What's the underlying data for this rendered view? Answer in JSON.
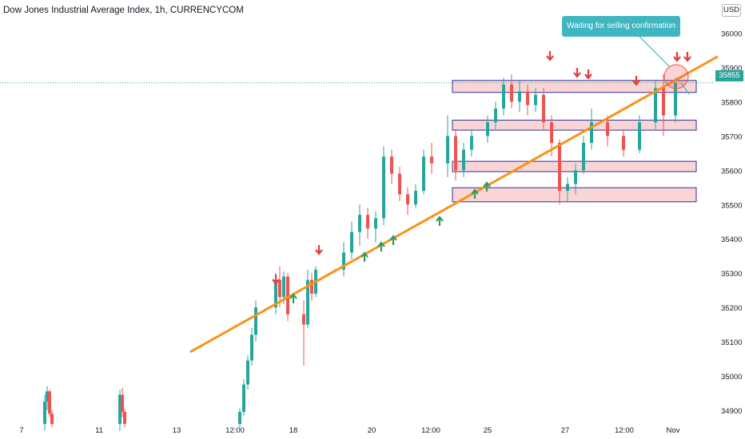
{
  "header": {
    "title": "Dow Jones Industrial Average Index, 1h, CURRENCYCOM",
    "currency": "USD"
  },
  "annotation": {
    "text": "Waiting for selling confirmation"
  },
  "last_price": "35855",
  "colors": {
    "up": "#26a69a",
    "down": "#ef5350",
    "trendline": "#f7931a",
    "zone_fill": "#f9d6d5",
    "zone_border": "#2a2e9e",
    "callout": "#3fb6c0",
    "sell_arrow": "#e53935",
    "buy_arrow": "#2e9b5c"
  },
  "chart_data": {
    "type": "candlestick",
    "title": "Dow Jones Industrial Average Index, 1h, CURRENCYCOM",
    "y_ticks": [
      34900,
      35000,
      35100,
      35200,
      35300,
      35400,
      35500,
      35600,
      35700,
      35800,
      35900,
      36000
    ],
    "x_ticks": [
      "7",
      "11",
      "13",
      "12:00",
      "18",
      "20",
      "12:00",
      "25",
      "27",
      "12:00",
      "Nov"
    ],
    "ylim": [
      34850,
      36030
    ],
    "grid": false,
    "last_price": 35855,
    "trendline": {
      "from": {
        "x": "15 Oct 12:00",
        "y": 35070
      },
      "to": {
        "x": "1 Nov",
        "y": 35932
      }
    },
    "resistance_zones": [
      {
        "low": 35827,
        "high": 35862
      },
      {
        "low": 35717,
        "high": 35746
      },
      {
        "low": 35596,
        "high": 35626
      },
      {
        "low": 35508,
        "high": 35549
      }
    ],
    "sell_signals": [
      "17 Oct",
      "19 Oct",
      "26 Oct a",
      "26 Oct b",
      "27 Oct a",
      "27 Oct b",
      "28 Oct",
      "1 Nov"
    ],
    "buy_signals": [
      "18 Oct",
      "20 Oct a",
      "20 Oct b",
      "20 Oct c",
      "22 Oct",
      "24 Oct a",
      "24 Oct b"
    ],
    "candles": [
      {
        "t": "Oct 7 a",
        "o": 34860,
        "h": 34945,
        "l": 34840,
        "c": 34925
      },
      {
        "t": "Oct 7 b",
        "o": 34925,
        "h": 34970,
        "l": 34900,
        "c": 34955
      },
      {
        "t": "Oct 7 c",
        "o": 34955,
        "h": 34960,
        "l": 34880,
        "c": 34890
      },
      {
        "t": "Oct 7 d",
        "o": 34890,
        "h": 34900,
        "l": 34850,
        "c": 34860
      },
      {
        "t": "Oct 11 a",
        "o": 34860,
        "h": 34960,
        "l": 34840,
        "c": 34945
      },
      {
        "t": "Oct 11 b",
        "o": 34945,
        "h": 34965,
        "l": 34880,
        "c": 34895
      },
      {
        "t": "Oct 11 c",
        "o": 34895,
        "h": 34905,
        "l": 34850,
        "c": 34860
      },
      {
        "t": "Oct 15 a",
        "o": 34860,
        "h": 34905,
        "l": 34850,
        "c": 34895
      },
      {
        "t": "Oct 15 b",
        "o": 34895,
        "h": 34990,
        "l": 34885,
        "c": 34975
      },
      {
        "t": "Oct 15 c",
        "o": 34975,
        "h": 35060,
        "l": 34960,
        "c": 35045
      },
      {
        "t": "Oct 15 d",
        "o": 35045,
        "h": 35140,
        "l": 35030,
        "c": 35120
      },
      {
        "t": "Oct 15 e",
        "o": 35120,
        "h": 35220,
        "l": 35100,
        "c": 35200
      },
      {
        "t": "Oct 18 a",
        "o": 35200,
        "h": 35300,
        "l": 35180,
        "c": 35280
      },
      {
        "t": "Oct 18 b",
        "o": 35280,
        "h": 35320,
        "l": 35200,
        "c": 35230
      },
      {
        "t": "Oct 18 c",
        "o": 35230,
        "h": 35305,
        "l": 35210,
        "c": 35290
      },
      {
        "t": "Oct 18 d",
        "o": 35290,
        "h": 35300,
        "l": 35160,
        "c": 35180
      },
      {
        "t": "Oct 19 a",
        "o": 35180,
        "h": 35220,
        "l": 35030,
        "c": 35150
      },
      {
        "t": "Oct 19 b",
        "o": 35150,
        "h": 35310,
        "l": 35140,
        "c": 35280
      },
      {
        "t": "Oct 19 c",
        "o": 35280,
        "h": 35300,
        "l": 35220,
        "c": 35240
      },
      {
        "t": "Oct 19 d",
        "o": 35240,
        "h": 35320,
        "l": 35230,
        "c": 35310
      },
      {
        "t": "Oct 20 a",
        "o": 35310,
        "h": 35390,
        "l": 35290,
        "c": 35360
      },
      {
        "t": "Oct 20 b",
        "o": 35360,
        "h": 35450,
        "l": 35340,
        "c": 35420
      },
      {
        "t": "Oct 20 c",
        "o": 35420,
        "h": 35500,
        "l": 35380,
        "c": 35470
      },
      {
        "t": "Oct 20 d",
        "o": 35470,
        "h": 35490,
        "l": 35400,
        "c": 35430
      },
      {
        "t": "Oct 21 a",
        "o": 35430,
        "h": 35480,
        "l": 35390,
        "c": 35460
      },
      {
        "t": "Oct 21 b",
        "o": 35460,
        "h": 35670,
        "l": 35440,
        "c": 35640
      },
      {
        "t": "Oct 21 c",
        "o": 35640,
        "h": 35660,
        "l": 35560,
        "c": 35590
      },
      {
        "t": "Oct 21 d",
        "o": 35590,
        "h": 35610,
        "l": 35510,
        "c": 35530
      },
      {
        "t": "Oct 22 a",
        "o": 35530,
        "h": 35550,
        "l": 35470,
        "c": 35500
      },
      {
        "t": "Oct 22 b",
        "o": 35500,
        "h": 35560,
        "l": 35490,
        "c": 35540
      },
      {
        "t": "Oct 22 c",
        "o": 35540,
        "h": 35660,
        "l": 35530,
        "c": 35640
      },
      {
        "t": "Oct 22 d",
        "o": 35640,
        "h": 35680,
        "l": 35590,
        "c": 35620
      },
      {
        "t": "Oct 24 a",
        "o": 35620,
        "h": 35760,
        "l": 35580,
        "c": 35700
      },
      {
        "t": "Oct 24 b",
        "o": 35700,
        "h": 35720,
        "l": 35570,
        "c": 35600
      },
      {
        "t": "Oct 24 c",
        "o": 35600,
        "h": 35680,
        "l": 35580,
        "c": 35660
      },
      {
        "t": "Oct 24 d",
        "o": 35660,
        "h": 35720,
        "l": 35640,
        "c": 35700
      },
      {
        "t": "Oct 25 a",
        "o": 35700,
        "h": 35760,
        "l": 35680,
        "c": 35740
      },
      {
        "t": "Oct 25 b",
        "o": 35740,
        "h": 35800,
        "l": 35720,
        "c": 35780
      },
      {
        "t": "Oct 25 c",
        "o": 35780,
        "h": 35870,
        "l": 35760,
        "c": 35850
      },
      {
        "t": "Oct 26 a",
        "o": 35850,
        "h": 35880,
        "l": 35780,
        "c": 35800
      },
      {
        "t": "Oct 26 b",
        "o": 35800,
        "h": 35860,
        "l": 35770,
        "c": 35830
      },
      {
        "t": "Oct 26 c",
        "o": 35830,
        "h": 35850,
        "l": 35760,
        "c": 35790
      },
      {
        "t": "Oct 27 a",
        "o": 35790,
        "h": 35840,
        "l": 35770,
        "c": 35820
      },
      {
        "t": "Oct 27 b",
        "o": 35820,
        "h": 35840,
        "l": 35720,
        "c": 35740
      },
      {
        "t": "Oct 27 c",
        "o": 35740,
        "h": 35760,
        "l": 35640,
        "c": 35680
      },
      {
        "t": "Oct 28 a",
        "o": 35680,
        "h": 35690,
        "l": 35500,
        "c": 35540
      },
      {
        "t": "Oct 28 b",
        "o": 35540,
        "h": 35580,
        "l": 35510,
        "c": 35560
      },
      {
        "t": "Oct 28 c",
        "o": 35560,
        "h": 35620,
        "l": 35530,
        "c": 35600
      },
      {
        "t": "Oct 28 d",
        "o": 35600,
        "h": 35700,
        "l": 35590,
        "c": 35680
      },
      {
        "t": "Oct 29 a",
        "o": 35680,
        "h": 35780,
        "l": 35660,
        "c": 35740
      },
      {
        "t": "Oct 29 b",
        "o": 35740,
        "h": 35760,
        "l": 35670,
        "c": 35700
      },
      {
        "t": "Oct 29 c",
        "o": 35700,
        "h": 35720,
        "l": 35640,
        "c": 35660
      },
      {
        "t": "Oct 29 d",
        "o": 35660,
        "h": 35760,
        "l": 35650,
        "c": 35740
      },
      {
        "t": "Nov 1 a",
        "o": 35740,
        "h": 35860,
        "l": 35720,
        "c": 35840
      },
      {
        "t": "Nov 1 b",
        "o": 35840,
        "h": 35880,
        "l": 35700,
        "c": 35760
      },
      {
        "t": "Nov 1 c",
        "o": 35760,
        "h": 35870,
        "l": 35740,
        "c": 35855
      }
    ]
  }
}
